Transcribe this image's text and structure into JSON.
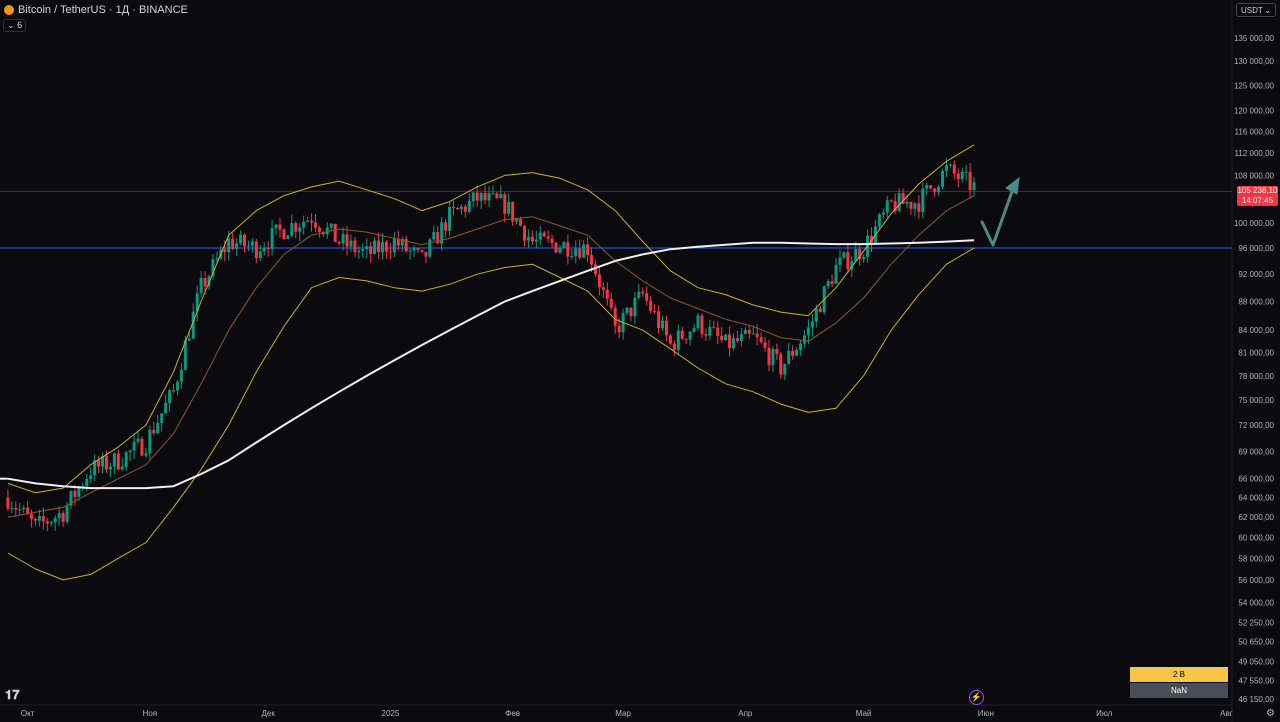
{
  "header": {
    "symbol": "Bitcoin / TetherUS · 1Д · BINANCE",
    "collapse_label": "6",
    "currency": "USDT"
  },
  "price_tag": {
    "price": "105 238,10",
    "countdown": "14:07:45"
  },
  "colors": {
    "up": "#089981",
    "down": "#f23645",
    "band": "#c9b12f",
    "basis": "#8a5a2e",
    "ma": "#f0f0f0",
    "arrow": "#4a8a88",
    "hline": "#2962ff"
  },
  "chart_data": {
    "type": "line",
    "title": "",
    "xlabel": "",
    "ylabel": "",
    "y_scale": "log",
    "x": [
      "2024-09-26",
      "2024-10-03",
      "2024-10-10",
      "2024-10-17",
      "2024-10-24",
      "2024-10-31",
      "2024-11-07",
      "2024-11-14",
      "2024-11-21",
      "2024-11-28",
      "2024-12-05",
      "2024-12-12",
      "2024-12-19",
      "2024-12-26",
      "2025-01-02",
      "2025-01-09",
      "2025-01-16",
      "2025-01-23",
      "2025-01-30",
      "2025-02-06",
      "2025-02-13",
      "2025-02-20",
      "2025-02-27",
      "2025-03-06",
      "2025-03-13",
      "2025-03-20",
      "2025-03-27",
      "2025-04-03",
      "2025-04-10",
      "2025-04-17",
      "2025-04-24",
      "2025-05-01",
      "2025-05-08",
      "2025-05-15",
      "2025-05-22",
      "2025-05-29"
    ],
    "series": [
      {
        "values": [
          64000,
          61000,
          62500,
          67000,
          68000,
          70000,
          76000,
          90000,
          97000,
          96000,
          99000,
          101000,
          97000,
          95000,
          97000,
          94000,
          101000,
          104000,
          103000,
          97000,
          96500,
          96000,
          84000,
          89000,
          82000,
          85000,
          82000,
          83000,
          79000,
          84000,
          93000,
          96000,
          103000,
          103500,
          109000,
          106000
        ]
      },
      {
        "values": [
          62000,
          62500,
          63000,
          64500,
          66000,
          67500,
          71000,
          77000,
          84000,
          90000,
          95000,
          98000,
          99000,
          98500,
          97500,
          96500,
          97500,
          99000,
          100500,
          101000,
          99500,
          98000,
          94000,
          91000,
          88500,
          87000,
          85500,
          84500,
          83000,
          82500,
          85000,
          88500,
          93500,
          98000,
          102000,
          104500
        ]
      },
      {
        "values": [
          65500,
          64500,
          65000,
          67500,
          69500,
          72000,
          78500,
          88000,
          98000,
          102000,
          104500,
          106000,
          107000,
          105500,
          104000,
          102000,
          103500,
          106000,
          108000,
          108500,
          107500,
          105500,
          102000,
          97000,
          92500,
          90000,
          89000,
          87500,
          86500,
          86000,
          90000,
          95500,
          101500,
          106500,
          110500,
          113500
        ]
      },
      {
        "values": [
          58500,
          57000,
          56000,
          56500,
          58000,
          59500,
          63000,
          67000,
          72000,
          78500,
          84500,
          90000,
          91500,
          91000,
          90000,
          89500,
          90500,
          92000,
          93000,
          93500,
          91500,
          89500,
          85500,
          84000,
          81500,
          79000,
          77000,
          76000,
          74500,
          73500,
          74000,
          78000,
          84000,
          89000,
          93500,
          96000
        ]
      },
      {
        "values": [
          66000,
          65500,
          65200,
          65000,
          65000,
          65000,
          65200,
          66500,
          68000,
          70000,
          72000,
          74000,
          76000,
          78000,
          80000,
          82000,
          84000,
          86000,
          88000,
          89500,
          91000,
          92500,
          94000,
          95000,
          95800,
          96200,
          96500,
          96800,
          96800,
          96700,
          96600,
          96600,
          96700,
          96800,
          97000,
          97200
        ]
      }
    ],
    "hline": 96000,
    "last_price": 105238.1,
    "y_ticks": [
      "135 000,00",
      "130 000,00",
      "125 000,00",
      "120 000,00",
      "116 000,00",
      "112 000,00",
      "108 000,00",
      "100 000,00",
      "96 000,00",
      "92 000,00",
      "88 000,00",
      "84 000,00",
      "81 000,00",
      "78 000,00",
      "75 000,00",
      "72 000,00",
      "69 000,00",
      "66 000,00",
      "64 000,00",
      "62 000,00",
      "60 000,00",
      "58 000,00",
      "56 000,00",
      "54 000,00",
      "52 250,00",
      "50 650,00",
      "49 050,00",
      "47 550,00",
      "46 150,00"
    ],
    "x_ticks": [
      "Окт",
      "Ноя",
      "Дек",
      "2025",
      "Фев",
      "Мар",
      "Апр",
      "Май",
      "Июн",
      "Июл",
      "Авг"
    ]
  },
  "footer": {
    "badge_top": "2 B",
    "badge_bottom": "NaN"
  }
}
